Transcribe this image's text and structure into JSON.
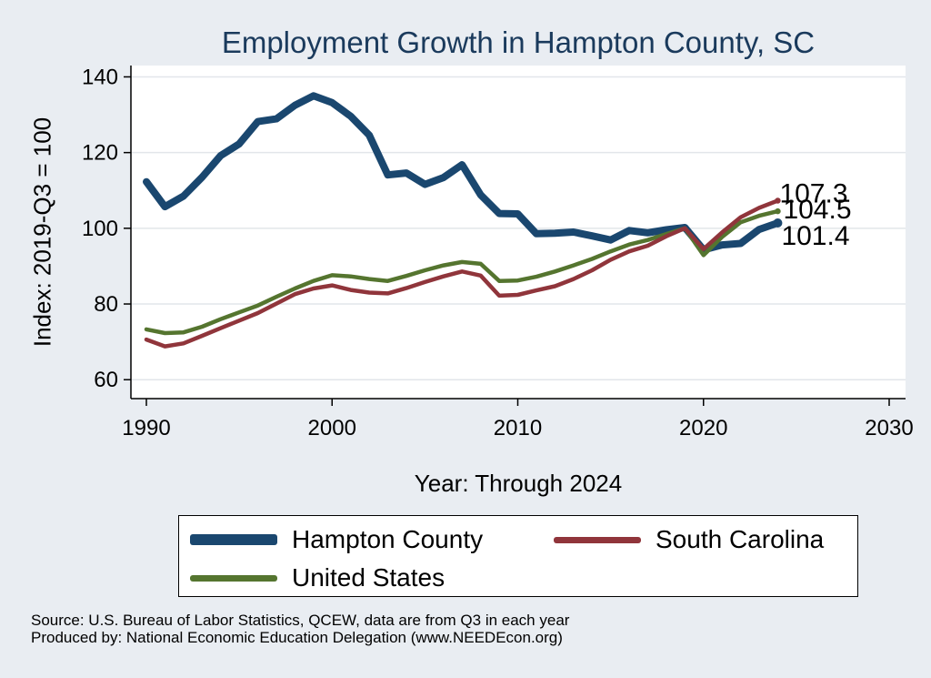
{
  "chart_data": {
    "type": "line",
    "title": "Employment Growth in Hampton County, SC",
    "xlabel": "Year: Through 2024",
    "ylabel": "Index: 2019-Q3 = 100",
    "xlim": [
      1990,
      2030
    ],
    "ylim": [
      55,
      143
    ],
    "xticks": [
      "1990",
      "2000",
      "2010",
      "2020",
      "2030"
    ],
    "yticks": [
      "60",
      "80",
      "100",
      "120",
      "140"
    ],
    "x": [
      1990,
      1991,
      1992,
      1993,
      1994,
      1995,
      1996,
      1997,
      1998,
      1999,
      2000,
      2001,
      2002,
      2003,
      2004,
      2005,
      2006,
      2007,
      2008,
      2009,
      2010,
      2011,
      2012,
      2013,
      2014,
      2015,
      2016,
      2017,
      2018,
      2019,
      2020,
      2021,
      2022,
      2023,
      2024
    ],
    "series": [
      {
        "name": "Hampton  County",
        "color": "#1a476f",
        "values": [
          112.3,
          105.7,
          108.5,
          113.5,
          119.2,
          122.3,
          128.2,
          128.9,
          132.5,
          135.0,
          133.2,
          129.6,
          124.6,
          114.1,
          114.6,
          111.6,
          113.4,
          116.8,
          108.8,
          103.9,
          103.8,
          98.6,
          98.7,
          99.0,
          98.0,
          96.9,
          99.4,
          98.8,
          99.6,
          100.2,
          94.3,
          95.6,
          96.0,
          99.7,
          101.4
        ],
        "end_label": "101.4"
      },
      {
        "name": "South Carolina",
        "color": "#90353b",
        "values": [
          70.6,
          68.8,
          69.6,
          71.6,
          73.6,
          75.6,
          77.6,
          80.1,
          82.6,
          84.1,
          84.9,
          83.7,
          83.0,
          82.8,
          84.2,
          85.8,
          87.3,
          88.6,
          87.5,
          82.2,
          82.4,
          83.6,
          84.7,
          86.6,
          88.9,
          91.7,
          93.9,
          95.4,
          97.9,
          100.0,
          94.5,
          98.9,
          102.9,
          105.4,
          107.3
        ],
        "end_label": "107.3"
      },
      {
        "name": "United States",
        "color": "#55752f",
        "values": [
          73.3,
          72.3,
          72.5,
          74.0,
          76.0,
          77.8,
          79.6,
          81.9,
          84.1,
          86.1,
          87.6,
          87.3,
          86.6,
          86.1,
          87.4,
          88.9,
          90.2,
          91.1,
          90.6,
          86.1,
          86.2,
          87.2,
          88.6,
          90.2,
          91.9,
          93.9,
          95.7,
          96.9,
          98.5,
          100.0,
          92.9,
          97.7,
          101.6,
          103.3,
          104.5
        ],
        "end_label": "104.5"
      }
    ],
    "legend_position": "bottom"
  },
  "source_lines": [
    "Source: U.S. Bureau of Labor Statistics, QCEW, data are from Q3 in each year",
    "Produced by: National Economic Education Delegation (www.NEEDEcon.org)"
  ]
}
